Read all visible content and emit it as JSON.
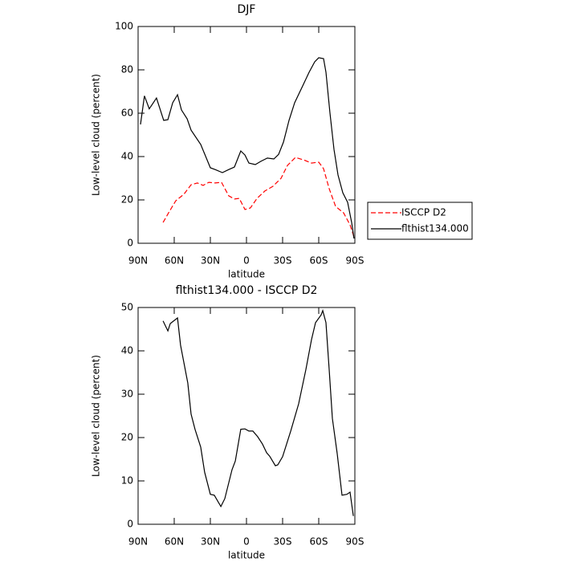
{
  "chart_data": [
    {
      "type": "line",
      "title": "DJF",
      "xlabel": "latitude",
      "ylabel": "Low-level cloud (percent)",
      "xlim": [
        90,
        -90
      ],
      "xticks": [
        {
          "value": 90,
          "label": "90N"
        },
        {
          "value": 60,
          "label": "60N"
        },
        {
          "value": 30,
          "label": "30N"
        },
        0,
        {
          "value": -30,
          "label": "30S"
        },
        {
          "value": -60,
          "label": "60S"
        },
        {
          "value": -90,
          "label": "90S"
        }
      ],
      "ylim": [
        0,
        100
      ],
      "yticks": [
        0,
        20,
        40,
        60,
        80,
        100
      ],
      "legend": "right",
      "series": [
        {
          "name": "ISCCP D2",
          "color": "#ff0000",
          "linestyle": "dashed",
          "x": [
            69.3,
            64.7,
            58.7,
            52,
            46,
            40.7,
            36,
            31.3,
            26,
            20.7,
            14.7,
            10,
            6,
            1.3,
            -3.3,
            -8.7,
            -15.3,
            -22,
            -28.7,
            -34,
            -40.7,
            -47.3,
            -54,
            -60,
            -64,
            -68.7,
            -74,
            -80.7,
            -86,
            -89.3
          ],
          "values": [
            9.6,
            14,
            19.6,
            22.6,
            27,
            27.8,
            26.7,
            28.1,
            27.8,
            28.1,
            21.9,
            20.4,
            20.7,
            15.6,
            16.3,
            20.7,
            24.1,
            26.3,
            30,
            35.9,
            39.6,
            38.5,
            37,
            37.4,
            34.4,
            25.2,
            17,
            14,
            8.5,
            3
          ]
        },
        {
          "name": "flthist134.000",
          "color": "#000000",
          "linestyle": "solid",
          "x": [
            88,
            84.7,
            80.7,
            74.7,
            68.7,
            65.3,
            61.3,
            57.3,
            54,
            49.3,
            46,
            38,
            30,
            26,
            20,
            14.7,
            10,
            4.7,
            1.3,
            -2,
            -7.3,
            -12,
            -17.3,
            -22.7,
            -26.7,
            -30.7,
            -35.3,
            -40,
            -46.7,
            -52,
            -56.7,
            -60,
            -64,
            -66,
            -69.3,
            -72.7,
            -76,
            -80,
            -84,
            -87.3,
            -89.3
          ],
          "values": [
            54.8,
            68,
            62,
            67,
            56.7,
            57,
            64.8,
            68.5,
            61.5,
            57.4,
            52.2,
            45.6,
            34.8,
            34,
            32.6,
            34,
            35.2,
            42.6,
            40.7,
            37,
            36.3,
            37.8,
            39.3,
            38.9,
            41,
            46.7,
            56.7,
            64.8,
            72.6,
            78.9,
            83.7,
            85.6,
            85.2,
            78.9,
            60.4,
            43.3,
            31.5,
            23.3,
            18.9,
            9.6,
            2.2
          ]
        }
      ]
    },
    {
      "type": "line",
      "title": "flthist134.000 - ISCCP D2",
      "xlabel": "latitude",
      "ylabel": "Low-level cloud (percent)",
      "xlim": [
        90,
        -90
      ],
      "xticks": [
        {
          "value": 90,
          "label": "90N"
        },
        {
          "value": 60,
          "label": "60N"
        },
        {
          "value": 30,
          "label": "30N"
        },
        0,
        {
          "value": -30,
          "label": "30S"
        },
        {
          "value": -60,
          "label": "60S"
        },
        {
          "value": -90,
          "label": "90S"
        }
      ],
      "ylim": [
        0,
        50
      ],
      "yticks": [
        0,
        10,
        20,
        30,
        40,
        50
      ],
      "series": [
        {
          "color": "#000000",
          "linestyle": "solid",
          "x": [
            69.3,
            65.3,
            63.3,
            57.3,
            54.7,
            48.7,
            46,
            42.7,
            38,
            34.7,
            30,
            26.7,
            21.3,
            18,
            12,
            9.3,
            4.7,
            1.3,
            -2,
            -5.3,
            -9.3,
            -13.3,
            -16.7,
            -19.3,
            -24,
            -26,
            -30,
            -36.7,
            -43.3,
            -49.3,
            -54,
            -57.3,
            -62,
            -63.3,
            -66,
            -68.7,
            -71.3,
            -75.3,
            -79.3,
            -83.3,
            -86,
            -88.7
          ],
          "values": [
            46.9,
            44.6,
            46.3,
            47.6,
            41.3,
            32.6,
            25.4,
            21.9,
            17.8,
            12,
            6.9,
            6.7,
            4.1,
            5.9,
            12.6,
            14.6,
            21.9,
            22,
            21.5,
            21.5,
            20.2,
            18.5,
            16.5,
            15.7,
            13.5,
            13.7,
            15.6,
            21.5,
            27.8,
            35.7,
            42.6,
            46.5,
            48.3,
            49.3,
            46.5,
            35.7,
            24.4,
            16.3,
            6.7,
            6.9,
            7.4,
            1.9
          ]
        }
      ]
    }
  ]
}
